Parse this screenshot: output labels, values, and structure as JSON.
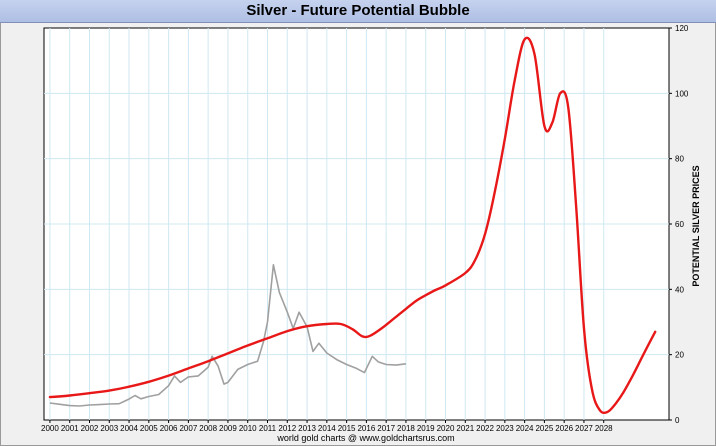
{
  "chart_data": {
    "type": "line",
    "title": "Silver - Future Potential Bubble",
    "ylabel": "POTENTIAL SILVER PRICES",
    "xlabel": "",
    "footer": "world gold charts @ www.goldchartsrus.com",
    "xlim": [
      1999.7,
      2031.3
    ],
    "ylim": [
      0,
      120
    ],
    "x_ticks": [
      "2000",
      "2001",
      "2002",
      "2003",
      "2004",
      "2005",
      "2006",
      "2007",
      "2008",
      "2009",
      "2010",
      "2011",
      "2012",
      "2013",
      "2014",
      "2015",
      "2016",
      "2017",
      "2018",
      "2019",
      "2020",
      "2021",
      "2022",
      "2023",
      "2024",
      "2025",
      "2026",
      "2027",
      "2028"
    ],
    "y_ticks": [
      0,
      20,
      40,
      60,
      80,
      100,
      120
    ],
    "grid": true,
    "series": [
      {
        "color": "#a0a0a0",
        "x": [
          2000.0,
          2000.5,
          2001.0,
          2001.5,
          2002.0,
          2002.5,
          2003.0,
          2003.5,
          2004.0,
          2004.3,
          2004.6,
          2005.0,
          2005.5,
          2006.0,
          2006.3,
          2006.6,
          2007.0,
          2007.5,
          2008.0,
          2008.2,
          2008.5,
          2008.8,
          2009.0,
          2009.5,
          2010.0,
          2010.5,
          2010.8,
          2011.0,
          2011.3,
          2011.6,
          2012.0,
          2012.3,
          2012.6,
          2013.0,
          2013.3,
          2013.6,
          2014.0,
          2014.5,
          2015.0,
          2015.5,
          2015.9,
          2016.3,
          2016.6,
          2017.0,
          2017.5,
          2018.0
        ],
        "values": [
          5.2,
          4.8,
          4.4,
          4.3,
          4.6,
          4.7,
          4.9,
          5.0,
          6.4,
          7.5,
          6.5,
          7.2,
          7.8,
          10.5,
          13.5,
          11.5,
          13.2,
          13.5,
          16.2,
          19.5,
          16.5,
          11.0,
          11.5,
          15.5,
          17.0,
          18.0,
          24.0,
          30.0,
          47.5,
          39.0,
          33.0,
          28.0,
          33.0,
          28.5,
          21.0,
          23.5,
          20.5,
          18.5,
          17.0,
          15.8,
          14.5,
          19.5,
          17.8,
          17.0,
          16.8,
          17.2
        ]
      },
      {
        "color": "#e81818",
        "x": [
          2000.0,
          2001.0,
          2002.0,
          2003.0,
          2004.0,
          2005.0,
          2006.0,
          2007.0,
          2008.0,
          2009.0,
          2010.0,
          2011.0,
          2012.0,
          2013.0,
          2014.0,
          2014.7,
          2015.3,
          2015.8,
          2016.2,
          2016.8,
          2017.5,
          2018.0,
          2018.5,
          2019.0,
          2019.5,
          2020.0,
          2021.0,
          2021.5,
          2022.0,
          2022.5,
          2023.0,
          2023.5,
          2024.0,
          2024.5,
          2025.0,
          2025.4,
          2025.8,
          2026.2,
          2026.6,
          2027.0,
          2027.4,
          2027.8,
          2028.2,
          2028.6,
          2029.0,
          2029.5,
          2030.0,
          2030.6
        ],
        "values": [
          7.0,
          7.5,
          8.2,
          9.0,
          10.2,
          11.7,
          13.6,
          15.8,
          18.0,
          20.4,
          22.8,
          25.0,
          27.2,
          28.7,
          29.4,
          29.4,
          27.8,
          25.6,
          25.8,
          28.2,
          31.6,
          34.0,
          36.4,
          38.2,
          39.8,
          41.2,
          45.0,
          49.0,
          57.0,
          70.0,
          86.0,
          104.0,
          116.5,
          112.0,
          90.0,
          91.0,
          100.0,
          96.0,
          66.0,
          28.0,
          9.5,
          3.0,
          2.5,
          5.0,
          8.5,
          14.0,
          20.0,
          27.0
        ]
      }
    ]
  }
}
